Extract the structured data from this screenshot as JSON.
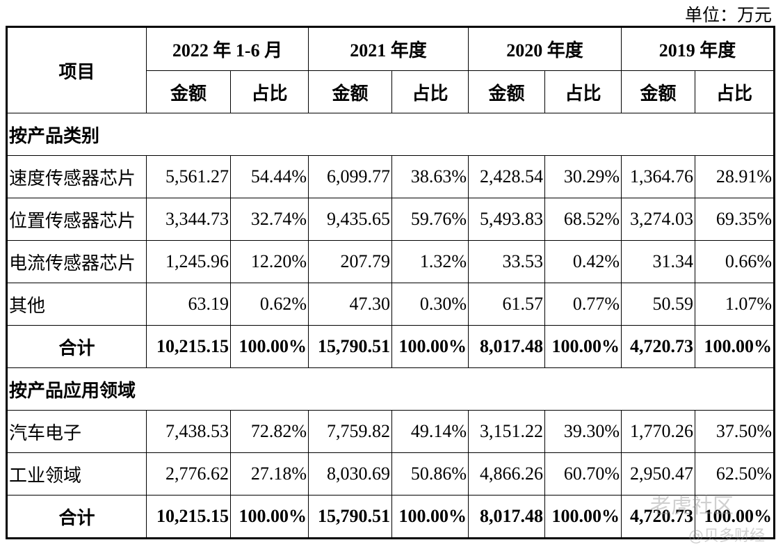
{
  "unit": "单位：万元",
  "header": {
    "item": "项目",
    "periods": [
      "2022 年 1-6 月",
      "2021 年度",
      "2020 年度",
      "2019 年度"
    ],
    "amount": "金额",
    "ratio": "占比"
  },
  "sections": [
    {
      "title": "按产品类别",
      "rows": [
        {
          "label": "速度传感器芯片",
          "values": [
            "5,561.27",
            "54.44%",
            "6,099.77",
            "38.63%",
            "2,428.54",
            "30.29%",
            "1,364.76",
            "28.91%"
          ]
        },
        {
          "label": "位置传感器芯片",
          "values": [
            "3,344.73",
            "32.74%",
            "9,435.65",
            "59.76%",
            "5,493.83",
            "68.52%",
            "3,274.03",
            "69.35%"
          ]
        },
        {
          "label": "电流传感器芯片",
          "values": [
            "1,245.96",
            "12.20%",
            "207.79",
            "1.32%",
            "33.53",
            "0.42%",
            "31.34",
            "0.66%"
          ]
        },
        {
          "label": "其他",
          "values": [
            "63.19",
            "0.62%",
            "47.30",
            "0.30%",
            "61.57",
            "0.77%",
            "50.59",
            "1.07%"
          ]
        }
      ],
      "total": {
        "label": "合计",
        "values": [
          "10,215.15",
          "100.00%",
          "15,790.51",
          "100.00%",
          "8,017.48",
          "100.00%",
          "4,720.73",
          "100.00%"
        ]
      }
    },
    {
      "title": "按产品应用领域",
      "rows": [
        {
          "label": "汽车电子",
          "values": [
            "7,438.53",
            "72.82%",
            "7,759.82",
            "49.14%",
            "3,151.22",
            "39.30%",
            "1,770.26",
            "37.50%"
          ]
        },
        {
          "label": "工业领域",
          "values": [
            "2,776.62",
            "27.18%",
            "8,030.69",
            "50.86%",
            "4,866.26",
            "60.70%",
            "2,950.47",
            "62.50%"
          ]
        }
      ],
      "total": {
        "label": "合计",
        "values": [
          "10,215.15",
          "100.00%",
          "15,790.51",
          "100.00%",
          "8,017.48",
          "100.00%",
          "4,720.73",
          "100.00%"
        ]
      }
    }
  ],
  "watermark": {
    "line1": "老虎社区",
    "line2": "@贝多财经"
  }
}
